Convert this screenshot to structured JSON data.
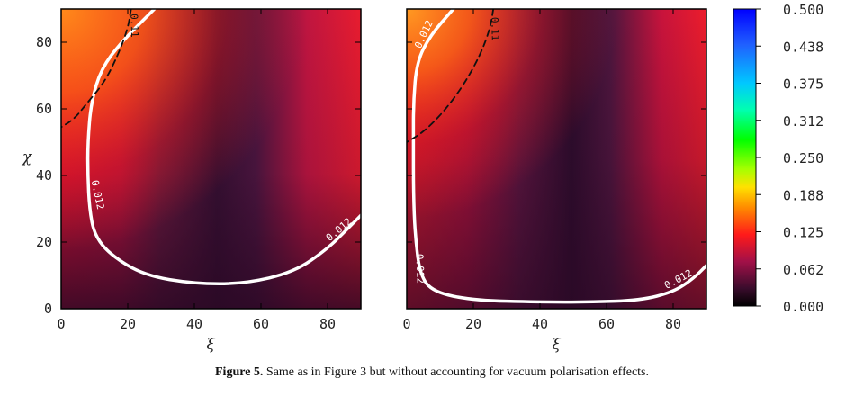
{
  "caption": {
    "label": "Figure 5.",
    "text": "Same as in Figure 3 but without accounting for vacuum polarisation effects."
  },
  "chart_data": [
    {
      "type": "heatmap",
      "panel": "left",
      "xlabel": "ξ",
      "ylabel": "χ",
      "xlim": [
        0,
        90
      ],
      "ylim": [
        0,
        90
      ],
      "xticks": [
        "0",
        "20",
        "40",
        "60",
        "80"
      ],
      "yticks": [
        "0",
        "20",
        "40",
        "60",
        "80"
      ],
      "contours": [
        {
          "level": "0.012",
          "style": "solid",
          "color": "#ffffff",
          "points": [
            [
              28,
              90
            ],
            [
              18,
              80
            ],
            [
              12,
              72
            ],
            [
              9,
              62
            ],
            [
              8,
              50
            ],
            [
              8,
              40
            ],
            [
              8.5,
              30
            ],
            [
              10,
              22
            ],
            [
              15,
              16
            ],
            [
              25,
              10
            ],
            [
              40,
              7.5
            ],
            [
              55,
              7.5
            ],
            [
              70,
              11
            ],
            [
              80,
              18
            ],
            [
              86,
              24
            ],
            [
              90,
              28
            ]
          ]
        },
        {
          "level": "0.11",
          "style": "dashed",
          "color": "#111111",
          "points": [
            [
              21,
              90
            ],
            [
              20,
              84
            ],
            [
              17,
              76
            ],
            [
              13,
              68
            ],
            [
              8,
              62
            ],
            [
              4,
              57
            ],
            [
              0,
              54.5
            ]
          ]
        }
      ]
    },
    {
      "type": "heatmap",
      "panel": "right",
      "xlabel": "ξ",
      "xlim": [
        0,
        90
      ],
      "ylim": [
        0,
        90
      ],
      "xticks": [
        "0",
        "20",
        "40",
        "60",
        "80"
      ],
      "contours": [
        {
          "level": "0.012",
          "style": "solid",
          "color": "#ffffff",
          "points": [
            [
              14,
              90
            ],
            [
              7,
              82
            ],
            [
              3,
              74
            ],
            [
              2,
              62
            ],
            [
              2,
              50
            ],
            [
              2,
              35
            ],
            [
              2.5,
              22
            ],
            [
              4,
              10
            ],
            [
              8,
              5
            ],
            [
              20,
              2.5
            ],
            [
              40,
              2
            ],
            [
              55,
              2
            ],
            [
              70,
              2.5
            ],
            [
              80,
              5
            ],
            [
              86,
              9
            ],
            [
              90,
              13
            ]
          ]
        },
        {
          "level": "0.11",
          "style": "dashed",
          "color": "#111111",
          "points": [
            [
              26,
              90
            ],
            [
              25,
              84
            ],
            [
              22,
              76
            ],
            [
              17,
              67
            ],
            [
              11,
              59
            ],
            [
              5,
              53
            ],
            [
              0,
              50
            ]
          ]
        }
      ]
    }
  ],
  "colorbar": {
    "ticks": [
      "0.500",
      "0.438",
      "0.375",
      "0.312",
      "0.250",
      "0.188",
      "0.125",
      "0.062",
      "0.000"
    ],
    "range": [
      0,
      0.5
    ]
  }
}
